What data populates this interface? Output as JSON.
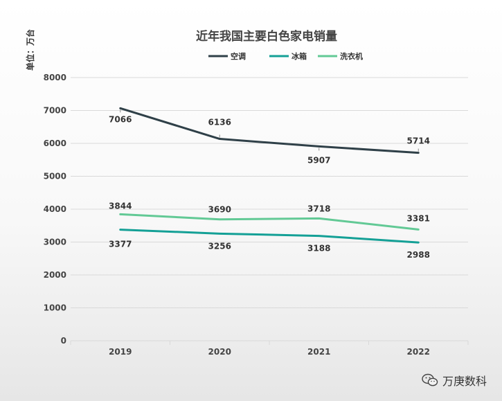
{
  "chart_data": {
    "type": "line",
    "title": "近年我国主要白色家电销量",
    "ylabel": "单位：万台",
    "xlabel": "",
    "categories": [
      "2019",
      "2020",
      "2021",
      "2022"
    ],
    "ylim": [
      0,
      8000
    ],
    "yticks": [
      0,
      1000,
      2000,
      3000,
      4000,
      5000,
      6000,
      7000,
      8000
    ],
    "grid": true,
    "legend_position": "top-center",
    "series": [
      {
        "name": "空调",
        "color": "#2f4048",
        "values": [
          7066,
          6136,
          5907,
          5714
        ]
      },
      {
        "name": "冰箱",
        "color": "#14a096",
        "values": [
          3377,
          3256,
          3188,
          2988
        ]
      },
      {
        "name": "洗衣机",
        "color": "#62c995",
        "values": [
          3844,
          3690,
          3718,
          3381
        ]
      }
    ]
  },
  "watermark": {
    "text": "万庚数科",
    "icon": "wechat-icon"
  }
}
